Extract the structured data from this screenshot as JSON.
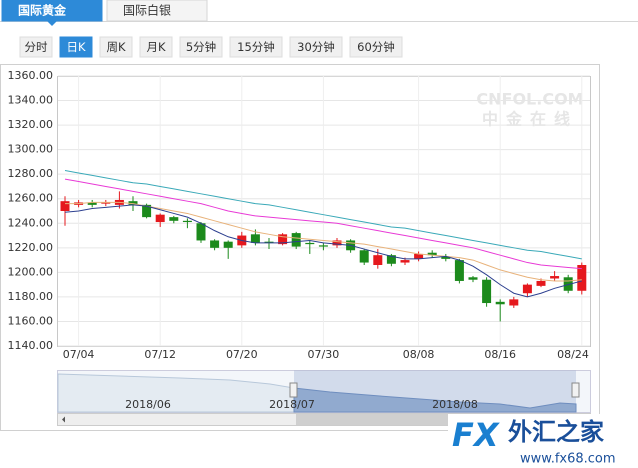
{
  "tabs": {
    "items": [
      "国际黄金",
      "国际白银"
    ],
    "active": 0
  },
  "buttons": {
    "items": [
      "分时",
      "日K",
      "周K",
      "月K",
      "5分钟",
      "15分钟",
      "30分钟",
      "60分钟"
    ],
    "active": 1
  },
  "watermark": {
    "brand": "CNFOL.COM",
    "name": "中金在线"
  },
  "logo": {
    "brand": "FX",
    "name": "外汇之家",
    "url": "www.fx68.com"
  },
  "navigator": {
    "labels": [
      "2018/06",
      "2018/07",
      "2018/08"
    ]
  },
  "chart_data": {
    "type": "candlestick",
    "categories": [
      null,
      "07/04",
      null,
      null,
      null,
      null,
      null,
      "07/12",
      null,
      null,
      null,
      null,
      null,
      "07/20",
      null,
      null,
      null,
      null,
      null,
      "07/30",
      null,
      null,
      null,
      null,
      null,
      null,
      "08/08",
      null,
      null,
      null,
      null,
      null,
      "08/16",
      null,
      null,
      null,
      null,
      null,
      "08/24"
    ],
    "open": [
      1250,
      1255,
      1257,
      1256,
      1255,
      1258,
      1255,
      1241,
      1245,
      1242,
      1240,
      1226,
      1225,
      1222,
      1231,
      1225,
      1223,
      1232,
      1224,
      1222,
      1222,
      1226,
      1218,
      1206,
      1214,
      1208,
      1211,
      1216,
      1213,
      1210,
      1196,
      1194,
      1176,
      1173,
      1183,
      1189,
      1195,
      1196,
      1185
    ],
    "high": [
      1262,
      1259,
      1259,
      1259,
      1266,
      1262,
      1256,
      1248,
      1246,
      1244,
      1241,
      1227,
      1226,
      1233,
      1235,
      1228,
      1232,
      1233,
      1226,
      1224,
      1228,
      1227,
      1219,
      1219,
      1215,
      1212,
      1217,
      1218,
      1215,
      1211,
      1197,
      1196,
      1178,
      1180,
      1191,
      1195,
      1201,
      1198,
      1208
    ],
    "low": [
      1238,
      1253,
      1253,
      1254,
      1252,
      1250,
      1244,
      1237,
      1240,
      1236,
      1224,
      1218,
      1211,
      1220,
      1222,
      1219,
      1222,
      1219,
      1215,
      1218,
      1220,
      1216,
      1206,
      1203,
      1205,
      1206,
      1209,
      1212,
      1209,
      1191,
      1192,
      1172,
      1160,
      1171,
      1180,
      1188,
      1193,
      1183,
      1182
    ],
    "close": [
      1258,
      1257,
      1255,
      1257,
      1259,
      1255,
      1245,
      1247,
      1242,
      1241,
      1226,
      1220,
      1220,
      1230,
      1224,
      1224,
      1231,
      1221,
      1223,
      1221,
      1226,
      1218,
      1208,
      1214,
      1207,
      1210,
      1215,
      1214,
      1211,
      1193,
      1194,
      1175,
      1174,
      1178,
      1190,
      1193,
      1197,
      1185,
      1206
    ],
    "up_color": "#e5181d",
    "down_color": "#1c8a1c",
    "series": [
      {
        "color": "#3aa9b8",
        "values": [
          1283,
          1281,
          1279,
          1277,
          1275,
          1273,
          1272,
          1270,
          1268,
          1266,
          1264,
          1262,
          1260,
          1258,
          1256,
          1255,
          1253,
          1251,
          1249,
          1247,
          1245,
          1243,
          1241,
          1239,
          1237,
          1236,
          1234,
          1232,
          1230,
          1228,
          1226,
          1224,
          1222,
          1220,
          1218,
          1217,
          1215,
          1213,
          1211
        ]
      },
      {
        "color": "#e83ad6",
        "values": [
          1276,
          1274,
          1272,
          1270,
          1268,
          1266,
          1264,
          1262,
          1260,
          1258,
          1256,
          1253,
          1250,
          1248,
          1246,
          1245,
          1244,
          1243,
          1242,
          1241,
          1240,
          1238,
          1236,
          1234,
          1232,
          1230,
          1228,
          1226,
          1224,
          1222,
          1220,
          1217,
          1214,
          1211,
          1208,
          1206,
          1205,
          1204,
          1203
        ]
      },
      {
        "color": "#e8b27a",
        "values": [
          1256,
          1256,
          1257,
          1257,
          1257,
          1256,
          1254,
          1252,
          1250,
          1248,
          1245,
          1242,
          1239,
          1236,
          1233,
          1231,
          1229,
          1228,
          1227,
          1226,
          1225,
          1224,
          1223,
          1221,
          1219,
          1217,
          1215,
          1214,
          1213,
          1212,
          1210,
          1206,
          1202,
          1199,
          1196,
          1194,
          1193,
          1193,
          1194
        ]
      },
      {
        "color": "#2c3f8f",
        "values": [
          1249,
          1250,
          1252,
          1253,
          1254,
          1255,
          1254,
          1251,
          1248,
          1245,
          1240,
          1234,
          1229,
          1226,
          1224,
          1224,
          1224,
          1225,
          1226,
          1224,
          1223,
          1222,
          1219,
          1216,
          1213,
          1211,
          1211,
          1212,
          1213,
          1210,
          1205,
          1198,
          1190,
          1183,
          1180,
          1183,
          1187,
          1190,
          1193
        ]
      }
    ],
    "ylim": [
      1140,
      1360
    ],
    "yticks": [
      {
        "value": 1140,
        "label": "1140.00"
      },
      {
        "value": 1160,
        "label": "1160.00"
      },
      {
        "value": 1180,
        "label": "1180.00"
      },
      {
        "value": 1200,
        "label": "1200.00"
      },
      {
        "value": 1220,
        "label": "1220.00"
      },
      {
        "value": 1240,
        "label": "1240.00"
      },
      {
        "value": 1260,
        "label": "1260.00"
      },
      {
        "value": 1280,
        "label": "1280.00"
      },
      {
        "value": 1300,
        "label": "1300.00"
      },
      {
        "value": 1320,
        "label": "1320.00"
      },
      {
        "value": 1340,
        "label": "1340.00"
      },
      {
        "value": 1360,
        "label": "1360.00"
      }
    ],
    "grid": true
  }
}
